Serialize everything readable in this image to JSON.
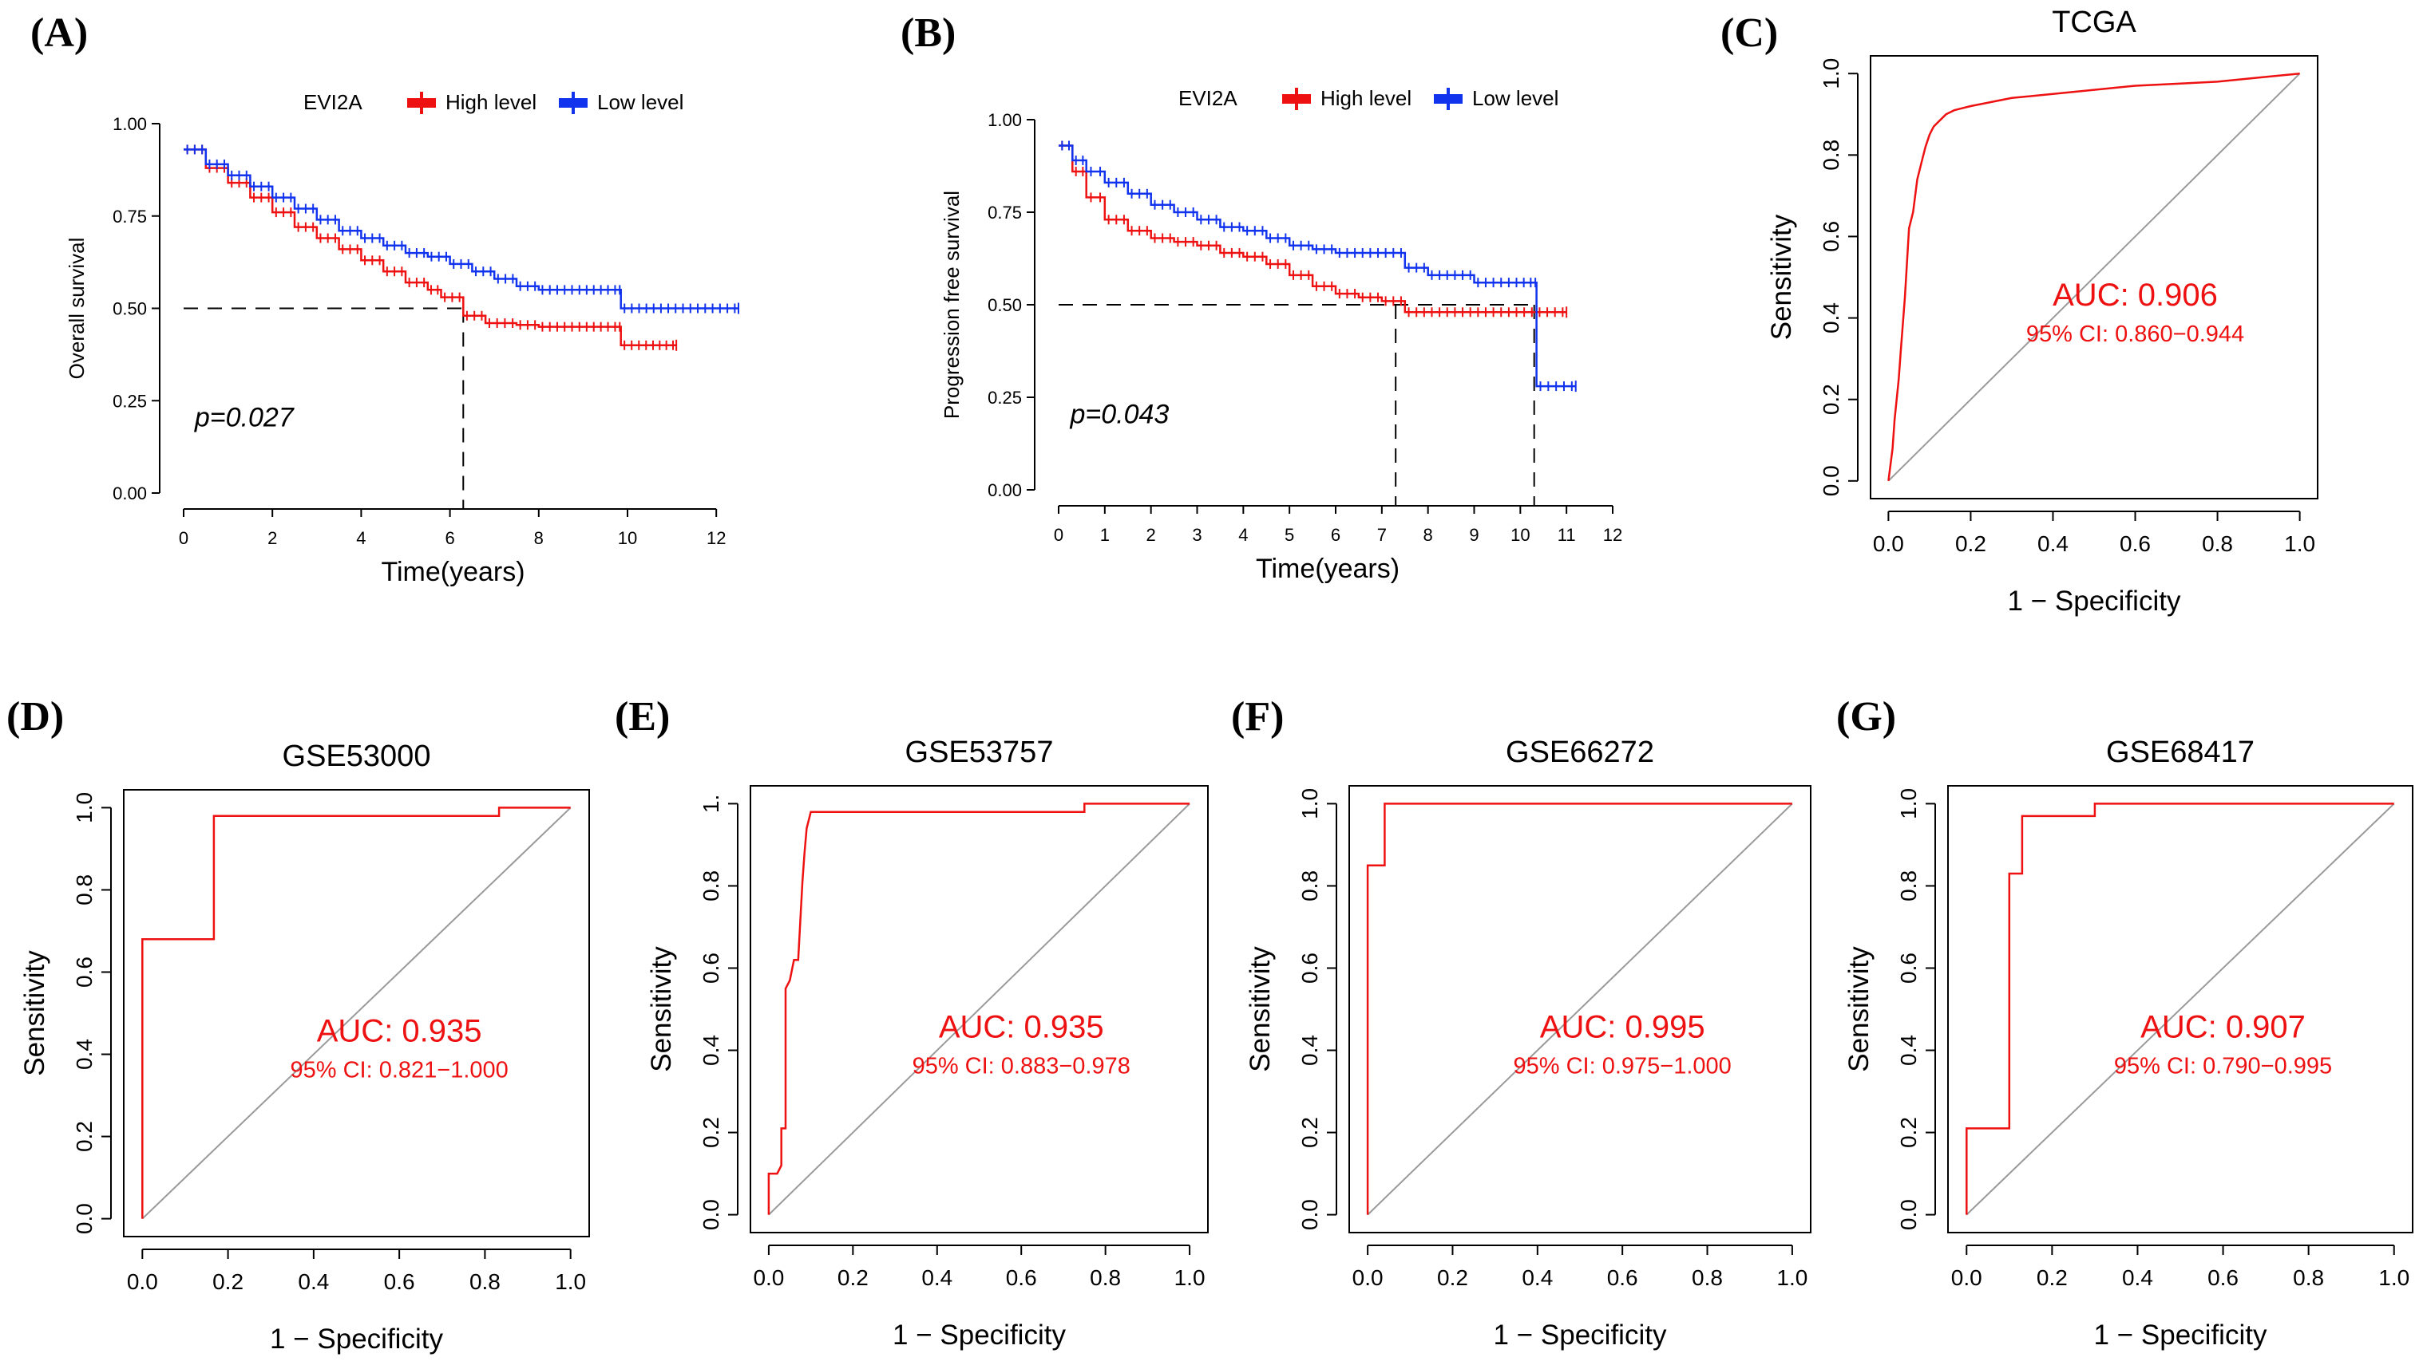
{
  "figure": {
    "panel_letters": [
      "(A)",
      "(B)",
      "(C)",
      "(D)",
      "(E)",
      "(F)",
      "(G)"
    ]
  },
  "colors": {
    "high": "#ee1111",
    "low": "#1133ee",
    "roc": "#ee1111",
    "auc_text": "#ee1111",
    "diagonal": "#9a9a9a",
    "axis": "#000000"
  },
  "chart_data": [
    {
      "panel": "(A)",
      "type": "line",
      "subtype": "kaplan-meier",
      "title": "",
      "xlabel": "Time(years)",
      "ylabel": "Overall survival",
      "xlim": [
        0,
        12.5
      ],
      "ylim": [
        0,
        1.0
      ],
      "xticks": [
        0,
        2,
        4,
        6,
        8,
        10,
        12
      ],
      "yticks": [
        "0.00",
        "0.25",
        "0.50",
        "0.75",
        "1.00"
      ],
      "legend": {
        "title": "EVI2A",
        "entries": [
          "High level",
          "Low level"
        ],
        "placement": "top"
      },
      "pvalue": "p=0.027",
      "median_line": {
        "y": 0.5,
        "x_end": [
          6.3
        ]
      },
      "series": [
        {
          "name": "High level",
          "x": [
            0,
            0.5,
            1,
            1.5,
            2,
            2.5,
            3,
            3.5,
            4,
            4.5,
            5,
            5.5,
            5.8,
            6.3,
            6.8,
            7.5,
            8,
            9,
            9.8,
            9.85,
            10.5,
            11.1
          ],
          "y": [
            0.93,
            0.88,
            0.84,
            0.8,
            0.76,
            0.72,
            0.69,
            0.66,
            0.63,
            0.6,
            0.57,
            0.55,
            0.53,
            0.48,
            0.46,
            0.455,
            0.45,
            0.45,
            0.45,
            0.4,
            0.4,
            0.4
          ]
        },
        {
          "name": "Low level",
          "x": [
            0,
            0.5,
            1,
            1.5,
            2,
            2.5,
            3,
            3.5,
            4,
            4.5,
            5,
            5.5,
            6,
            6.5,
            7,
            7.5,
            8,
            9,
            9.8,
            9.85,
            11,
            12.5
          ],
          "y": [
            0.93,
            0.89,
            0.86,
            0.83,
            0.8,
            0.77,
            0.74,
            0.71,
            0.69,
            0.67,
            0.65,
            0.64,
            0.62,
            0.6,
            0.58,
            0.56,
            0.55,
            0.55,
            0.55,
            0.5,
            0.5,
            0.5
          ]
        }
      ]
    },
    {
      "panel": "(B)",
      "type": "line",
      "subtype": "kaplan-meier",
      "title": "",
      "xlabel": "Time(years)",
      "ylabel": "Progression free survival",
      "xlim": [
        0,
        12
      ],
      "ylim": [
        0,
        1.0
      ],
      "xticks": [
        0,
        1,
        2,
        3,
        4,
        5,
        6,
        7,
        8,
        9,
        10,
        11,
        12
      ],
      "yticks": [
        "0.00",
        "0.25",
        "0.50",
        "0.75",
        "1.00"
      ],
      "legend": {
        "title": "EVI2A",
        "entries": [
          "High level",
          "Low level"
        ],
        "placement": "top"
      },
      "pvalue": "p=0.043",
      "median_line": {
        "y": 0.5,
        "x_end": [
          7.3,
          10.3
        ]
      },
      "series": [
        {
          "name": "High level",
          "x": [
            0,
            0.3,
            0.6,
            1,
            1.5,
            2,
            2.5,
            3,
            3.5,
            4,
            4.5,
            5,
            5.5,
            6,
            6.5,
            7,
            7.5,
            8,
            9,
            10,
            11
          ],
          "y": [
            0.93,
            0.86,
            0.79,
            0.73,
            0.7,
            0.68,
            0.67,
            0.66,
            0.64,
            0.63,
            0.61,
            0.58,
            0.55,
            0.53,
            0.52,
            0.51,
            0.48,
            0.48,
            0.48,
            0.48,
            0.48
          ]
        },
        {
          "name": "Low level",
          "x": [
            0,
            0.3,
            0.6,
            1,
            1.5,
            2,
            2.5,
            3,
            3.5,
            4,
            4.5,
            5,
            5.5,
            6,
            7,
            7.5,
            8,
            8.5,
            9,
            10,
            10.3,
            10.35,
            11.2
          ],
          "y": [
            0.93,
            0.89,
            0.86,
            0.83,
            0.8,
            0.77,
            0.75,
            0.73,
            0.71,
            0.7,
            0.68,
            0.66,
            0.65,
            0.64,
            0.64,
            0.6,
            0.58,
            0.58,
            0.56,
            0.56,
            0.56,
            0.28,
            0.28
          ]
        }
      ]
    },
    {
      "panel": "(C)",
      "type": "line",
      "subtype": "roc",
      "title": "TCGA",
      "xlabel": "1 − Specificity",
      "ylabel": "Sensitivity",
      "xlim": [
        0,
        1
      ],
      "ylim": [
        0,
        1
      ],
      "xticks": [
        "0.0",
        "0.2",
        "0.4",
        "0.6",
        "0.8",
        "1.0"
      ],
      "yticks": [
        "0.0",
        "0.2",
        "0.4",
        "0.6",
        "0.8",
        "1.0"
      ],
      "auc": "AUC: 0.906",
      "ci": "95% CI: 0.860−0.944",
      "x": [
        0,
        0.01,
        0.015,
        0.02,
        0.025,
        0.03,
        0.04,
        0.05,
        0.06,
        0.07,
        0.08,
        0.09,
        0.1,
        0.11,
        0.12,
        0.14,
        0.16,
        0.18,
        0.2,
        0.25,
        0.3,
        0.4,
        0.5,
        0.6,
        0.7,
        0.8,
        0.9,
        1.0
      ],
      "y": [
        0,
        0.08,
        0.15,
        0.2,
        0.25,
        0.32,
        0.45,
        0.62,
        0.66,
        0.74,
        0.78,
        0.82,
        0.85,
        0.87,
        0.88,
        0.9,
        0.91,
        0.915,
        0.92,
        0.93,
        0.94,
        0.95,
        0.96,
        0.97,
        0.975,
        0.98,
        0.99,
        1.0
      ]
    },
    {
      "panel": "(D)",
      "type": "line",
      "subtype": "roc",
      "title": "GSE53000",
      "xlabel": "1 − Specificity",
      "ylabel": "Sensitivity",
      "xlim": [
        0,
        1
      ],
      "ylim": [
        0,
        1
      ],
      "xticks": [
        "0.0",
        "0.2",
        "0.4",
        "0.6",
        "0.8",
        "1.0"
      ],
      "yticks": [
        "0.0",
        "0.2",
        "0.4",
        "0.6",
        "0.8",
        "1.0"
      ],
      "auc": "AUC: 0.935",
      "ci": "95% CI: 0.821−1.000",
      "x": [
        0,
        0,
        0.167,
        0.167,
        0.833,
        0.833,
        1.0
      ],
      "y": [
        0,
        0.68,
        0.68,
        0.98,
        0.98,
        1.0,
        1.0
      ]
    },
    {
      "panel": "(E)",
      "type": "line",
      "subtype": "roc",
      "title": "GSE53757",
      "xlabel": "1 − Specificity",
      "ylabel": "Sensitivity",
      "xlim": [
        0,
        1
      ],
      "ylim": [
        0,
        1
      ],
      "xticks": [
        "0.0",
        "0.2",
        "0.4",
        "0.6",
        "0.8",
        "1.0"
      ],
      "yticks": [
        "0.0",
        "0.2",
        "0.4",
        "0.6",
        "0.8",
        "1.0"
      ],
      "ytick_top_label": "1.",
      "auc": "AUC: 0.935",
      "ci": "95% CI: 0.883−0.978",
      "x": [
        0,
        0,
        0.02,
        0.03,
        0.03,
        0.04,
        0.04,
        0.05,
        0.06,
        0.07,
        0.08,
        0.085,
        0.09,
        0.1,
        0.75,
        0.75,
        1.0
      ],
      "y": [
        0,
        0.1,
        0.1,
        0.12,
        0.21,
        0.21,
        0.55,
        0.57,
        0.62,
        0.62,
        0.81,
        0.88,
        0.94,
        0.98,
        0.98,
        1.0,
        1.0
      ]
    },
    {
      "panel": "(F)",
      "type": "line",
      "subtype": "roc",
      "title": "GSE66272",
      "xlabel": "1 − Specificity",
      "ylabel": "Sensitivity",
      "xlim": [
        0,
        1
      ],
      "ylim": [
        0,
        1
      ],
      "xticks": [
        "0.0",
        "0.2",
        "0.4",
        "0.6",
        "0.8",
        "1.0"
      ],
      "yticks": [
        "0.0",
        "0.2",
        "0.4",
        "0.6",
        "0.8",
        "1.0"
      ],
      "auc": "AUC: 0.995",
      "ci": "95% CI: 0.975−1.000",
      "x": [
        0,
        0,
        0.04,
        0.04,
        1.0
      ],
      "y": [
        0,
        0.85,
        0.85,
        1.0,
        1.0
      ]
    },
    {
      "panel": "(G)",
      "type": "line",
      "subtype": "roc",
      "title": "GSE68417",
      "xlabel": "1 − Specificity",
      "ylabel": "Sensitivity",
      "xlim": [
        0,
        1
      ],
      "ylim": [
        0,
        1
      ],
      "xticks": [
        "0.0",
        "0.2",
        "0.4",
        "0.6",
        "0.8",
        "1.0"
      ],
      "yticks": [
        "0.0",
        "0.2",
        "0.4",
        "0.6",
        "0.8",
        "1.0"
      ],
      "auc": "AUC: 0.907",
      "ci": "95% CI: 0.790−0.995",
      "x": [
        0,
        0,
        0.1,
        0.1,
        0.13,
        0.13,
        0.3,
        0.3,
        1.0
      ],
      "y": [
        0,
        0.21,
        0.21,
        0.83,
        0.83,
        0.97,
        0.97,
        1.0,
        1.0
      ]
    }
  ]
}
